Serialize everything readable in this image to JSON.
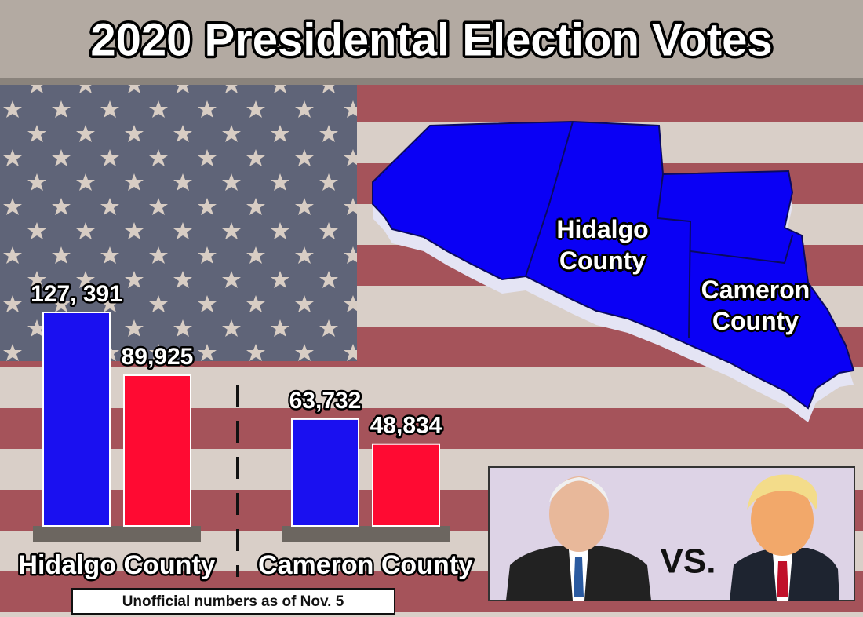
{
  "chart_data": {
    "type": "bar",
    "title": "2020 Presidental Election Votes",
    "categories": [
      "Hidalgo County",
      "Cameron County"
    ],
    "series": [
      {
        "color": "#1a10f0",
        "values": [
          127391,
          63732
        ],
        "value_labels": [
          "127, 391",
          "63,732"
        ]
      },
      {
        "color": "#ff0a32",
        "values": [
          89925,
          48834
        ],
        "value_labels": [
          "89,925",
          "48,834"
        ]
      }
    ],
    "note": "Unofficial numbers as of Nov. 5"
  },
  "map": {
    "labels": [
      "Hidalgo County",
      "Cameron County"
    ]
  },
  "versus": "VS."
}
